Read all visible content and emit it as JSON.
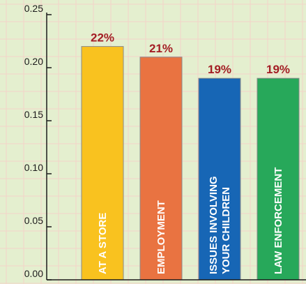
{
  "colors": {
    "background": "#e4efcf",
    "grid": "#f4d3c8",
    "axis": "#1c1c1c",
    "value_label": "#a31d24",
    "bar_label": "#ffffff",
    "bar_outline": "#8a8a8a"
  },
  "chart_data": {
    "type": "bar",
    "title": "",
    "xlabel": "",
    "ylabel": "",
    "categories": [
      [
        "AT A STORE"
      ],
      [
        "EMPLOYMENT"
      ],
      [
        "ISSUES INVOLVING",
        "YOUR CHILDREN"
      ],
      [
        "LAW ENFORCEMENT"
      ]
    ],
    "values": [
      0.22,
      0.21,
      0.19,
      0.19
    ],
    "value_labels": [
      "22%",
      "21%",
      "19%",
      "19%"
    ],
    "bar_colors": [
      "#f9c21f",
      "#e97341",
      "#1766b5",
      "#27a85a"
    ],
    "ylim": [
      0,
      0.25
    ],
    "yticks": [
      0.0,
      0.05,
      0.1,
      0.15,
      0.2,
      0.25
    ],
    "ytick_labels": [
      "0.00",
      "0.05",
      "0.10",
      "0.15",
      "0.20",
      "0.25"
    ],
    "grid": true,
    "legend": "none"
  }
}
